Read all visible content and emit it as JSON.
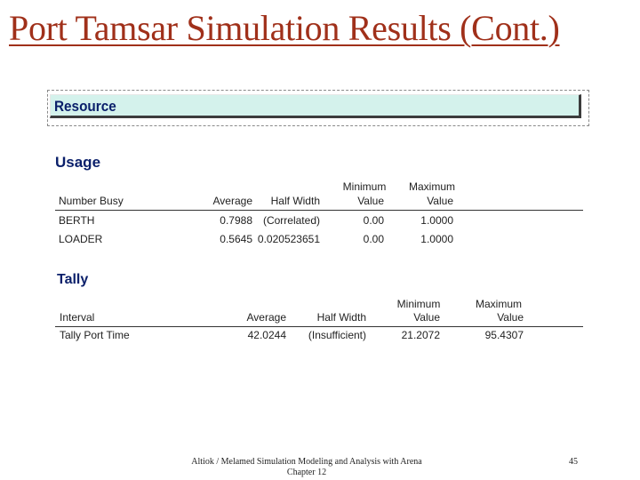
{
  "title": "Port Tamsar Simulation Results (Cont.)",
  "resource_header": "Resource",
  "usage": {
    "heading": "Usage",
    "columns": {
      "number_busy": "Number Busy",
      "average": "Average",
      "half_width": "Half Width",
      "minimum": [
        "Minimum",
        "Value"
      ],
      "maximum": [
        "Maximum",
        "Value"
      ]
    },
    "rows": [
      {
        "name": "BERTH",
        "average": "0.7988",
        "half_width": "(Correlated)",
        "minimum": "0.00",
        "maximum": "1.0000"
      },
      {
        "name": "LOADER",
        "average": "0.5645",
        "half_width": "0.020523651",
        "minimum": "0.00",
        "maximum": "1.0000"
      }
    ]
  },
  "tally": {
    "heading": "Tally",
    "columns": {
      "interval": "Interval",
      "average": "Average",
      "half_width": "Half Width",
      "minimum": [
        "Minimum",
        "Value"
      ],
      "maximum": [
        "Maximum",
        "Value"
      ]
    },
    "rows": [
      {
        "name": "Tally Port Time",
        "average": "42.0244",
        "half_width": "(Insufficient)",
        "minimum": "21.2072",
        "maximum": "95.4307"
      }
    ]
  },
  "footer": {
    "line1": "Altiok / Melamed   Simulation Modeling and Analysis with Arena",
    "line2": "Chapter 12",
    "page": "45"
  }
}
